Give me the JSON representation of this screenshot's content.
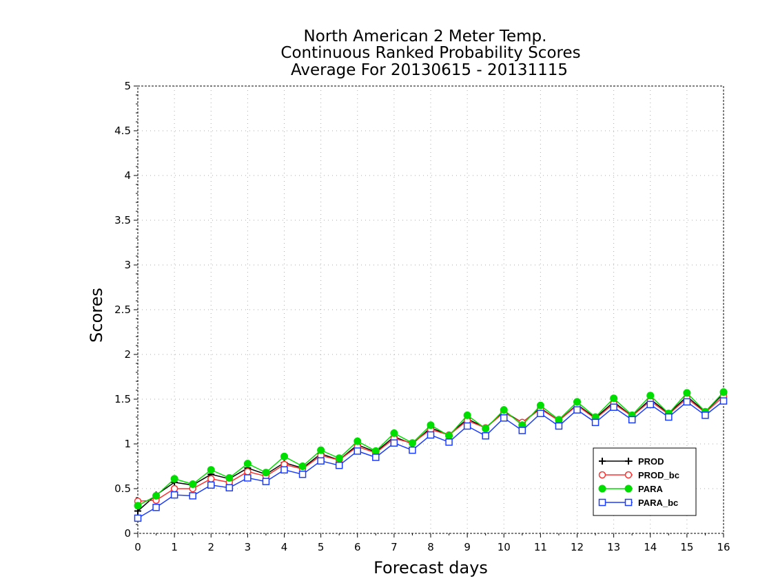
{
  "chart_data": {
    "type": "line",
    "title": [
      "North American 2 Meter Temp.",
      "Continuous Ranked Probability Scores",
      "Average For 20130615 - 20131115"
    ],
    "xlabel": "Forecast days",
    "ylabel": "Scores",
    "xlim": [
      0,
      16
    ],
    "ylim": [
      0,
      5
    ],
    "xticks": [
      "0",
      "1",
      "2",
      "3",
      "4",
      "5",
      "6",
      "7",
      "8",
      "9",
      "10",
      "11",
      "12",
      "13",
      "14",
      "15",
      "16"
    ],
    "yticks": [
      "0",
      "0.5",
      "1",
      "1.5",
      "2",
      "2.5",
      "3",
      "3.5",
      "4",
      "4.5",
      "5"
    ],
    "grid": true,
    "legend_position": "bottom-right",
    "x": [
      0,
      0.5,
      1,
      1.5,
      2,
      2.5,
      3,
      3.5,
      4,
      4.5,
      5,
      5.5,
      6,
      6.5,
      7,
      7.5,
      8,
      8.5,
      9,
      9.5,
      10,
      10.5,
      11,
      11.5,
      12,
      12.5,
      13,
      13.5,
      14,
      14.5,
      15,
      15.5,
      16
    ],
    "series": [
      {
        "name": "PROD",
        "color": "#000000",
        "marker": "plus",
        "values": [
          0.25,
          0.43,
          0.57,
          0.54,
          0.66,
          0.61,
          0.73,
          0.66,
          0.79,
          0.73,
          0.89,
          0.82,
          0.99,
          0.91,
          1.08,
          1.0,
          1.18,
          1.1,
          1.28,
          1.18,
          1.36,
          1.24,
          1.4,
          1.26,
          1.44,
          1.29,
          1.47,
          1.31,
          1.5,
          1.34,
          1.53,
          1.36,
          1.56
        ]
      },
      {
        "name": "PROD_bc",
        "color": "#ff3030",
        "marker": "open-circle",
        "values": [
          0.36,
          0.37,
          0.5,
          0.5,
          0.61,
          0.57,
          0.69,
          0.64,
          0.77,
          0.72,
          0.87,
          0.82,
          0.97,
          0.9,
          1.06,
          1.01,
          1.16,
          1.1,
          1.26,
          1.18,
          1.35,
          1.24,
          1.39,
          1.26,
          1.43,
          1.28,
          1.45,
          1.31,
          1.48,
          1.33,
          1.51,
          1.35,
          1.53
        ]
      },
      {
        "name": "PARA",
        "color": "#00dd00",
        "marker": "filled-circle",
        "values": [
          0.31,
          0.42,
          0.61,
          0.55,
          0.71,
          0.62,
          0.78,
          0.68,
          0.86,
          0.75,
          0.93,
          0.84,
          1.03,
          0.92,
          1.12,
          1.01,
          1.21,
          1.09,
          1.32,
          1.17,
          1.38,
          1.21,
          1.43,
          1.27,
          1.47,
          1.3,
          1.51,
          1.32,
          1.54,
          1.34,
          1.57,
          1.36,
          1.58
        ]
      },
      {
        "name": "PARA_bc",
        "color": "#1a3cff",
        "marker": "open-square",
        "values": [
          0.17,
          0.29,
          0.43,
          0.42,
          0.54,
          0.51,
          0.62,
          0.58,
          0.71,
          0.66,
          0.81,
          0.76,
          0.92,
          0.85,
          1.01,
          0.93,
          1.1,
          1.02,
          1.2,
          1.09,
          1.29,
          1.15,
          1.34,
          1.2,
          1.38,
          1.24,
          1.41,
          1.27,
          1.44,
          1.3,
          1.47,
          1.32,
          1.48
        ]
      }
    ]
  }
}
